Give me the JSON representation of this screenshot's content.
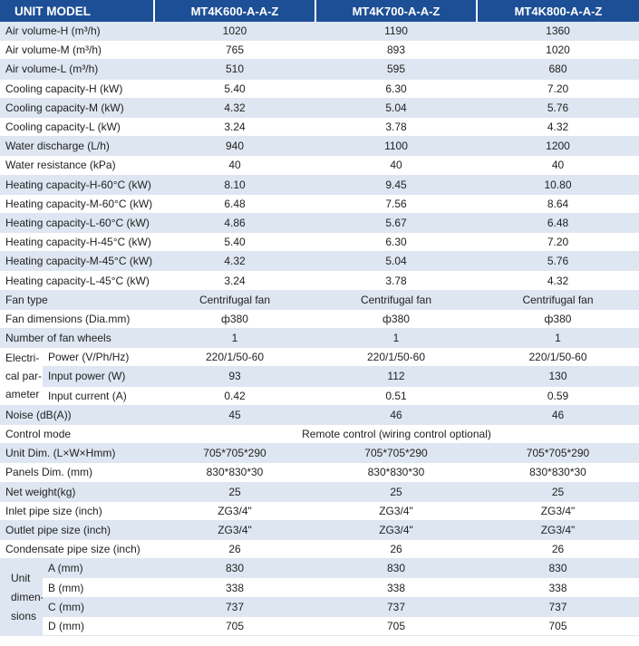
{
  "header": {
    "label": "UNIT MODEL",
    "models": [
      "MT4K600-A-A-Z",
      "MT4K700-A-A-Z",
      "MT4K800-A-A-Z"
    ]
  },
  "rows": [
    {
      "label": "Air volume-H (m³/h)",
      "values": [
        "1020",
        "1190",
        "1360"
      ]
    },
    {
      "label": "Air volume-M (m³/h)",
      "values": [
        "765",
        "893",
        "1020"
      ]
    },
    {
      "label": "Air volume-L (m³/h)",
      "values": [
        "510",
        "595",
        "680"
      ]
    },
    {
      "label": "Cooling capacity-H (kW)",
      "values": [
        "5.40",
        "6.30",
        "7.20"
      ]
    },
    {
      "label": "Cooling capacity-M (kW)",
      "values": [
        "4.32",
        "5.04",
        "5.76"
      ]
    },
    {
      "label": "Cooling capacity-L (kW)",
      "values": [
        "3.24",
        "3.78",
        "4.32"
      ]
    },
    {
      "label": "Water discharge (L/h)",
      "values": [
        "940",
        "1100",
        "1200"
      ]
    },
    {
      "label": "Water resistance (kPa)",
      "values": [
        "40",
        "40",
        "40"
      ]
    },
    {
      "label": "Heating capacity-H-60°C (kW)",
      "values": [
        "8.10",
        "9.45",
        "10.80"
      ]
    },
    {
      "label": "Heating capacity-M-60°C (kW)",
      "values": [
        "6.48",
        "7.56",
        "8.64"
      ]
    },
    {
      "label": "Heating capacity-L-60°C (kW)",
      "values": [
        "4.86",
        "5.67",
        "6.48"
      ]
    },
    {
      "label": "Heating capacity-H-45°C (kW)",
      "values": [
        "5.40",
        "6.30",
        "7.20"
      ]
    },
    {
      "label": "Heating capacity-M-45°C (kW)",
      "values": [
        "4.32",
        "5.04",
        "5.76"
      ]
    },
    {
      "label": "Heating capacity-L-45°C (kW)",
      "values": [
        "3.24",
        "3.78",
        "4.32"
      ]
    },
    {
      "label": "Fan type",
      "values": [
        "Centrifugal fan",
        "Centrifugal fan",
        "Centrifugal fan"
      ]
    },
    {
      "label": "Fan dimensions (Dia.mm)",
      "values": [
        "ф380",
        "ф380",
        "ф380"
      ]
    },
    {
      "label": "Number of fan wheels",
      "values": [
        "1",
        "1",
        "1"
      ]
    }
  ],
  "electrical": {
    "group_label": "Electri- cal par- ameter",
    "rows": [
      {
        "label": "Power (V/Ph/Hz)",
        "values": [
          "220/1/50-60",
          "220/1/50-60",
          "220/1/50-60"
        ]
      },
      {
        "label": "Input power (W)",
        "values": [
          "93",
          "112",
          "130"
        ]
      },
      {
        "label": "Input current (A)",
        "values": [
          "0.42",
          "0.51",
          "0.59"
        ]
      }
    ]
  },
  "noise": {
    "label": "Noise (dB(A))",
    "values": [
      "45",
      "46",
      "46"
    ]
  },
  "control": {
    "label": "Control mode",
    "value": "Remote control (wiring control optional)"
  },
  "rows2": [
    {
      "label": "Unit Dim. (L×W×Hmm)",
      "values": [
        "705*705*290",
        "705*705*290",
        "705*705*290"
      ]
    },
    {
      "label": "Panels Dim. (mm)",
      "values": [
        "830*830*30",
        "830*830*30",
        "830*830*30"
      ]
    },
    {
      "label": "Net weight(kg)",
      "values": [
        "25",
        "25",
        "25"
      ]
    },
    {
      "label": "Inlet pipe size (inch)",
      "values": [
        "ZG3/4\"",
        "ZG3/4\"",
        "ZG3/4\""
      ]
    },
    {
      "label": "Outlet pipe size (inch)",
      "values": [
        "ZG3/4\"",
        "ZG3/4\"",
        "ZG3/4\""
      ]
    },
    {
      "label": "Condensate pipe size (inch)",
      "values": [
        "26",
        "26",
        "26"
      ]
    }
  ],
  "dimensions": {
    "group_label": "Unit dimen- sions",
    "rows": [
      {
        "label": "A (mm)",
        "values": [
          "830",
          "830",
          "830"
        ]
      },
      {
        "label": "B (mm)",
        "values": [
          "338",
          "338",
          "338"
        ]
      },
      {
        "label": "C (mm)",
        "values": [
          "737",
          "737",
          "737"
        ]
      },
      {
        "label": "D (mm)",
        "values": [
          "705",
          "705",
          "705"
        ]
      }
    ]
  }
}
